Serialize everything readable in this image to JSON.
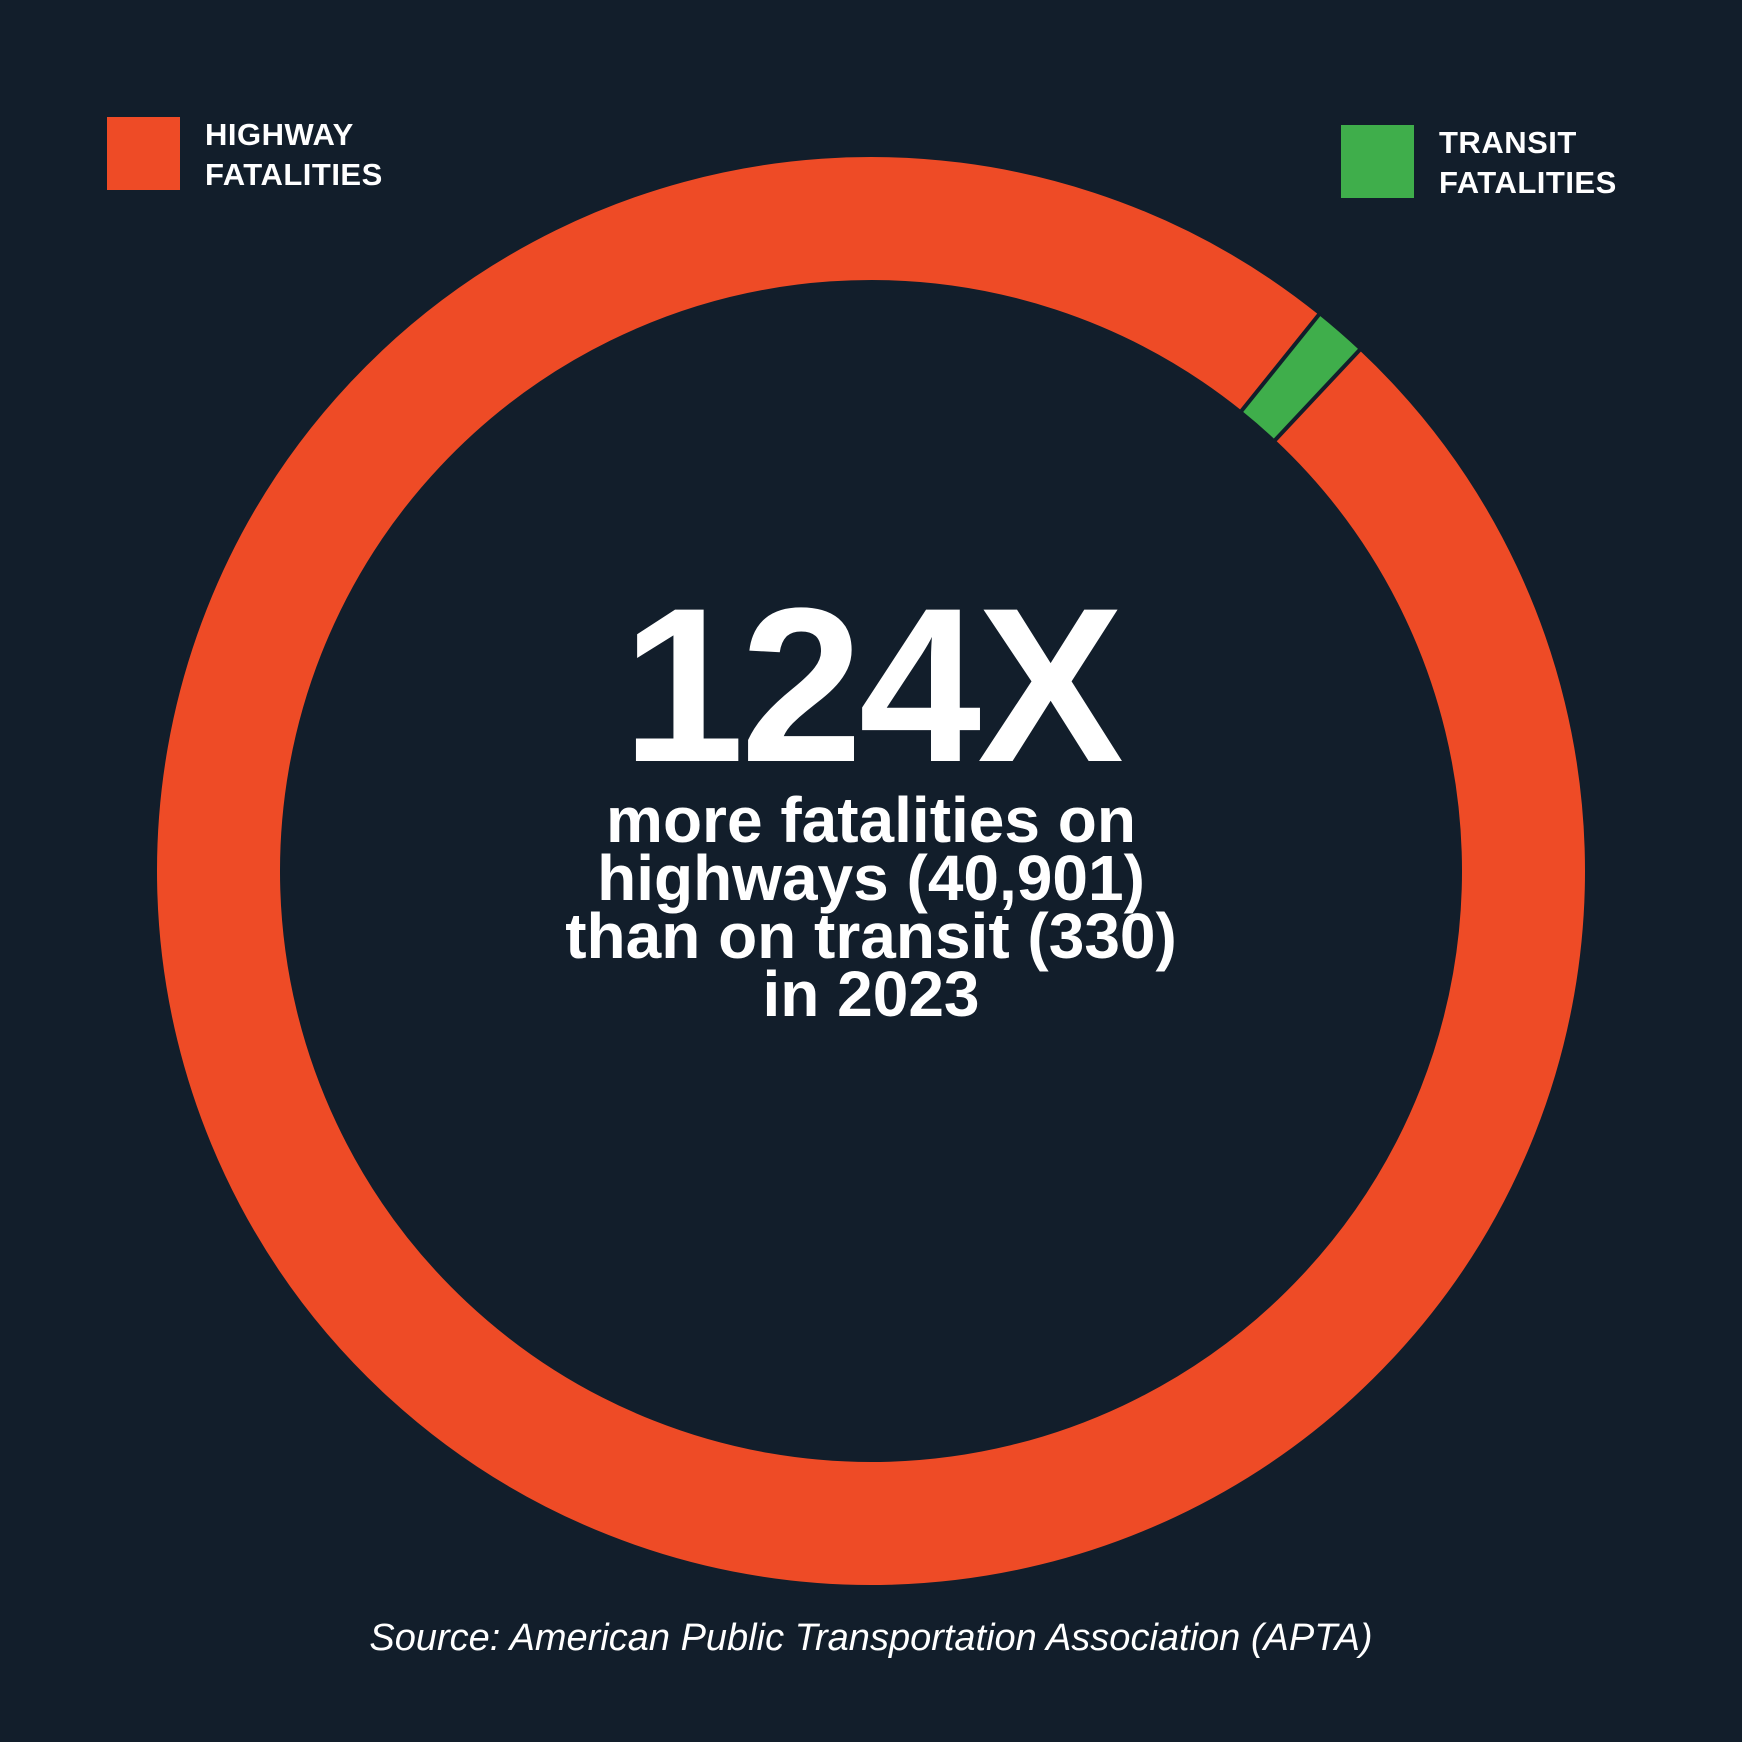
{
  "chart_data": {
    "type": "pie",
    "style": "donut",
    "title": "",
    "series": [
      {
        "name": "HIGHWAY FATALITIES",
        "value": 40901,
        "color": "#ee4b26"
      },
      {
        "name": "TRANSIT FATALITIES",
        "value": 330,
        "color": "#3fae4b"
      }
    ],
    "legend": {
      "placement": "top",
      "items": [
        {
          "line1": "HIGHWAY",
          "line2": "FATALITIES",
          "color": "#ee4b26"
        },
        {
          "line1": "TRANSIT",
          "line2": "FATALITIES",
          "color": "#3fae4b"
        }
      ]
    },
    "annotation": {
      "headline": "124X",
      "lines": [
        "more fatalities on",
        "highways (40,901)",
        "than on transit (330)",
        "in 2023"
      ]
    }
  },
  "source": "Source: American Public Transportation Association (APTA)",
  "colors": {
    "background": "#121e2b",
    "separator": "#121e2b",
    "text": "#ffffff"
  }
}
